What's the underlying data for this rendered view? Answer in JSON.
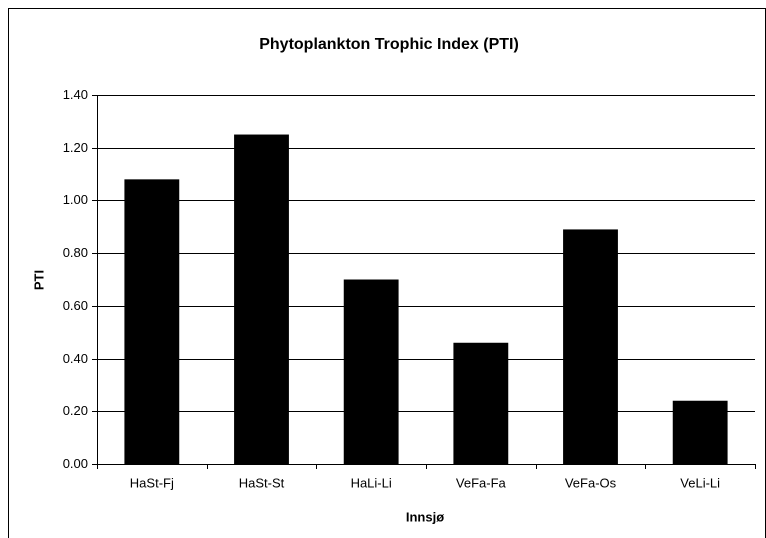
{
  "chart_data": {
    "type": "bar",
    "title": "Phytoplankton Trophic Index (PTI)",
    "x_label": "Innsjø",
    "y_label": "PTI",
    "categories": [
      "HaSt-Fj",
      "HaSt-St",
      "HaLi-Li",
      "VeFa-Fa",
      "VeFa-Os",
      "VeLi-Li"
    ],
    "values": [
      1.08,
      1.25,
      0.7,
      0.46,
      0.89,
      0.24
    ],
    "color": "#000000",
    "ylim": [
      0,
      1.4
    ],
    "yticks": [
      {
        "value": 0,
        "label": "0.00"
      },
      {
        "value": 0.2,
        "label": "0.20"
      },
      {
        "value": 0.4,
        "label": "0.40"
      },
      {
        "value": 0.6,
        "label": "0.60"
      },
      {
        "value": 0.8,
        "label": "0.80"
      },
      {
        "value": 1.0,
        "label": "1.00"
      },
      {
        "value": 1.2,
        "label": "1.20"
      },
      {
        "value": 1.4,
        "label": "1.40"
      }
    ],
    "grid": true
  }
}
